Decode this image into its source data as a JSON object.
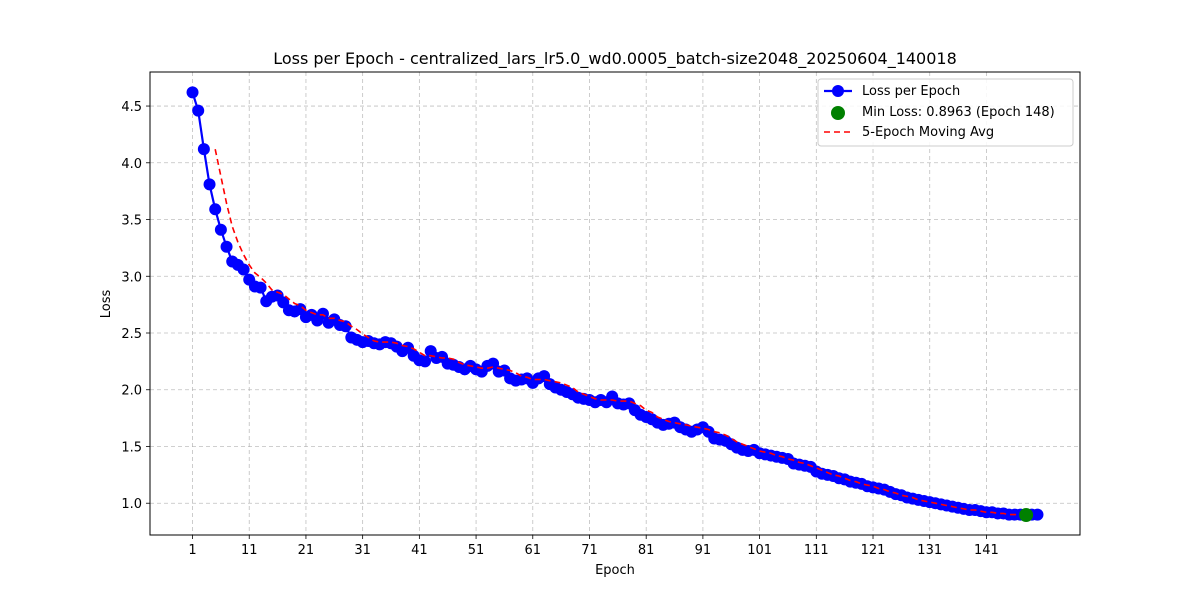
{
  "chart_data": {
    "type": "line",
    "title": "Loss per Epoch - centralized_lars_lr5.0_wd0.0005_batch-size2048_20250604_140018",
    "xlabel": "Epoch",
    "ylabel": "Loss",
    "xlim": [
      -6.5,
      157.5
    ],
    "ylim": [
      0.72,
      4.8
    ],
    "xticks": [
      1,
      11,
      21,
      31,
      41,
      51,
      61,
      71,
      81,
      91,
      101,
      111,
      121,
      131,
      141
    ],
    "yticks": [
      1.0,
      1.5,
      2.0,
      2.5,
      3.0,
      3.5,
      4.0,
      4.5
    ],
    "ytick_labels": [
      "1.0",
      "1.5",
      "2.0",
      "2.5",
      "3.0",
      "3.5",
      "4.0",
      "4.5"
    ],
    "grid": true,
    "legend_position": "top-right",
    "colors": {
      "loss": "#0000ff",
      "min": "#008000",
      "moving_avg": "#ff0000"
    },
    "series": [
      {
        "name": "Loss per Epoch",
        "style": "line-marker",
        "x_start": 1,
        "values": [
          4.62,
          4.46,
          4.12,
          3.81,
          3.59,
          3.41,
          3.26,
          3.13,
          3.1,
          3.06,
          2.97,
          2.91,
          2.9,
          2.78,
          2.82,
          2.83,
          2.77,
          2.7,
          2.69,
          2.71,
          2.64,
          2.66,
          2.61,
          2.67,
          2.59,
          2.62,
          2.57,
          2.56,
          2.46,
          2.44,
          2.42,
          2.43,
          2.41,
          2.4,
          2.42,
          2.41,
          2.38,
          2.34,
          2.37,
          2.3,
          2.26,
          2.25,
          2.34,
          2.28,
          2.29,
          2.23,
          2.22,
          2.2,
          2.18,
          2.21,
          2.18,
          2.16,
          2.21,
          2.23,
          2.16,
          2.17,
          2.1,
          2.08,
          2.09,
          2.1,
          2.06,
          2.1,
          2.12,
          2.05,
          2.02,
          2.0,
          1.98,
          1.96,
          1.93,
          1.92,
          1.91,
          1.89,
          1.91,
          1.89,
          1.94,
          1.88,
          1.87,
          1.88,
          1.82,
          1.78,
          1.76,
          1.74,
          1.71,
          1.69,
          1.7,
          1.71,
          1.67,
          1.65,
          1.63,
          1.65,
          1.67,
          1.63,
          1.57,
          1.56,
          1.55,
          1.52,
          1.49,
          1.47,
          1.46,
          1.47,
          1.44,
          1.43,
          1.42,
          1.41,
          1.4,
          1.39,
          1.35,
          1.34,
          1.33,
          1.32,
          1.28,
          1.26,
          1.25,
          1.24,
          1.22,
          1.21,
          1.19,
          1.18,
          1.17,
          1.15,
          1.14,
          1.13,
          1.12,
          1.1,
          1.08,
          1.07,
          1.05,
          1.04,
          1.03,
          1.02,
          1.01,
          1.0,
          0.99,
          0.98,
          0.97,
          0.96,
          0.95,
          0.94,
          0.94,
          0.93,
          0.92,
          0.92,
          0.91,
          0.91,
          0.9,
          0.9,
          0.9,
          0.8963,
          0.9,
          0.9
        ]
      },
      {
        "name": "Min Loss: 0.8963 (Epoch 148)",
        "style": "point",
        "x": [
          148
        ],
        "values": [
          0.8963
        ]
      },
      {
        "name": "5-Epoch Moving Avg",
        "style": "dashed-line",
        "x_start": 5,
        "values": [
          4.12,
          3.88,
          3.64,
          3.44,
          3.3,
          3.19,
          3.1,
          3.03,
          2.99,
          2.94,
          2.88,
          2.86,
          2.84,
          2.8,
          2.76,
          2.74,
          2.7,
          2.68,
          2.66,
          2.66,
          2.63,
          2.63,
          2.61,
          2.6,
          2.56,
          2.53,
          2.49,
          2.46,
          2.43,
          2.42,
          2.42,
          2.42,
          2.41,
          2.39,
          2.38,
          2.36,
          2.33,
          2.3,
          2.3,
          2.29,
          2.28,
          2.28,
          2.27,
          2.24,
          2.22,
          2.21,
          2.2,
          2.19,
          2.19,
          2.2,
          2.19,
          2.18,
          2.17,
          2.15,
          2.12,
          2.11,
          2.09,
          2.09,
          2.09,
          2.08,
          2.07,
          2.06,
          2.04,
          2.02,
          1.98,
          1.96,
          1.94,
          1.92,
          1.91,
          1.91,
          1.91,
          1.9,
          1.9,
          1.9,
          1.88,
          1.86,
          1.82,
          1.8,
          1.76,
          1.74,
          1.72,
          1.71,
          1.7,
          1.69,
          1.68,
          1.67,
          1.66,
          1.65,
          1.63,
          1.62,
          1.6,
          1.57,
          1.54,
          1.52,
          1.5,
          1.48,
          1.46,
          1.45,
          1.44,
          1.42,
          1.41,
          1.39,
          1.38,
          1.36,
          1.35,
          1.33,
          1.31,
          1.29,
          1.27,
          1.25,
          1.24,
          1.22,
          1.2,
          1.19,
          1.17,
          1.16,
          1.15,
          1.13,
          1.12,
          1.1,
          1.09,
          1.07,
          1.06,
          1.05,
          1.03,
          1.02,
          1.01,
          1.0,
          0.99,
          0.98,
          0.97,
          0.96,
          0.95,
          0.94,
          0.94,
          0.93,
          0.92,
          0.92,
          0.91,
          0.91,
          0.9,
          0.9,
          0.9,
          0.9,
          0.9
        ]
      }
    ]
  }
}
